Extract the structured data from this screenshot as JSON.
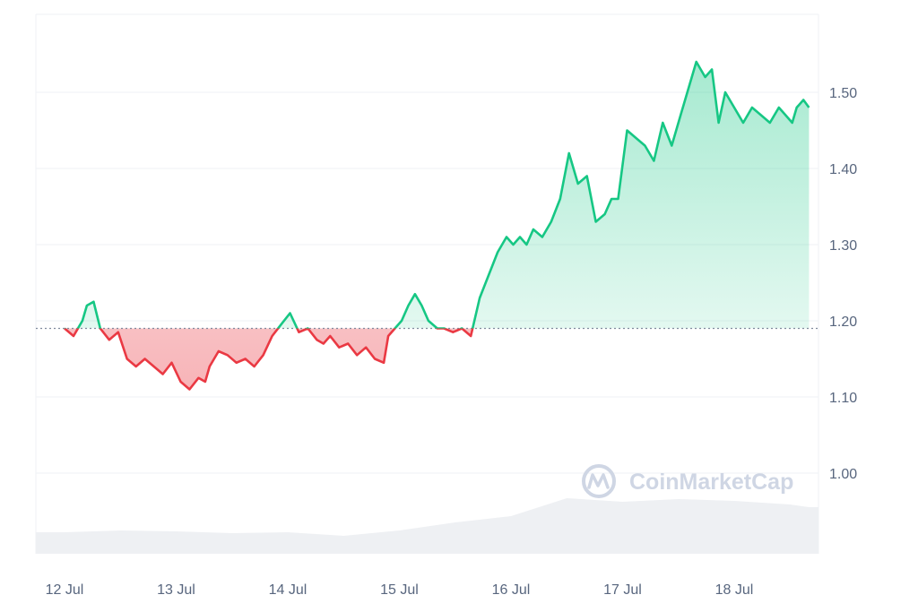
{
  "chart_data": {
    "type": "area",
    "title": "",
    "xlabel": "",
    "ylabel": "",
    "baseline": 1.19,
    "ylim": [
      0.89,
      1.6
    ],
    "xlim": [
      0,
      6.67
    ],
    "x_ticks": [
      {
        "pos": 0,
        "label": "12 Jul"
      },
      {
        "pos": 1,
        "label": "13 Jul"
      },
      {
        "pos": 2,
        "label": "14 Jul"
      },
      {
        "pos": 3,
        "label": "15 Jul"
      },
      {
        "pos": 4,
        "label": "16 Jul"
      },
      {
        "pos": 5,
        "label": "17 Jul"
      },
      {
        "pos": 6,
        "label": "18 Jul"
      }
    ],
    "y_ticks": [
      "1.00",
      "1.10",
      "1.20",
      "1.30",
      "1.40",
      "1.50"
    ],
    "grid": true,
    "series": [
      {
        "x": [
          0.0,
          0.08,
          0.16,
          0.2,
          0.26,
          0.32,
          0.4,
          0.48,
          0.56,
          0.64,
          0.72,
          0.8,
          0.88,
          0.96,
          1.04,
          1.12,
          1.2,
          1.26,
          1.3,
          1.38,
          1.46,
          1.54,
          1.62,
          1.7,
          1.78,
          1.86,
          1.94,
          2.02,
          2.1,
          2.18,
          2.26,
          2.32,
          2.38,
          2.46,
          2.54,
          2.62,
          2.7,
          2.78,
          2.86,
          2.9,
          2.96,
          3.02,
          3.08,
          3.14,
          3.2,
          3.26,
          3.34,
          3.4,
          3.48,
          3.56,
          3.64,
          3.72,
          3.8,
          3.88,
          3.96,
          4.02,
          4.08,
          4.14,
          4.2,
          4.28,
          4.36,
          4.44,
          4.52,
          4.6,
          4.68,
          4.76,
          4.84,
          4.9,
          4.96,
          5.04,
          5.12,
          5.2,
          5.28,
          5.36,
          5.44,
          5.52,
          5.58,
          5.66,
          5.74,
          5.8,
          5.86,
          5.92,
          6.0,
          6.08,
          6.16,
          6.24,
          6.32,
          6.4,
          6.46,
          6.52,
          6.56,
          6.62,
          6.67
        ],
        "y": [
          1.19,
          1.18,
          1.2,
          1.22,
          1.225,
          1.19,
          1.175,
          1.185,
          1.15,
          1.14,
          1.15,
          1.14,
          1.13,
          1.145,
          1.12,
          1.11,
          1.125,
          1.12,
          1.14,
          1.16,
          1.155,
          1.145,
          1.15,
          1.14,
          1.155,
          1.18,
          1.195,
          1.21,
          1.185,
          1.19,
          1.175,
          1.17,
          1.18,
          1.165,
          1.17,
          1.155,
          1.165,
          1.15,
          1.145,
          1.18,
          1.19,
          1.2,
          1.22,
          1.235,
          1.22,
          1.2,
          1.19,
          1.19,
          1.185,
          1.19,
          1.18,
          1.23,
          1.26,
          1.29,
          1.31,
          1.3,
          1.31,
          1.3,
          1.32,
          1.31,
          1.33,
          1.36,
          1.42,
          1.38,
          1.39,
          1.33,
          1.34,
          1.36,
          1.36,
          1.45,
          1.44,
          1.43,
          1.41,
          1.46,
          1.43,
          1.47,
          1.5,
          1.54,
          1.52,
          1.53,
          1.46,
          1.5,
          1.48,
          1.46,
          1.48,
          1.47,
          1.46,
          1.48,
          1.47,
          1.46,
          1.48,
          1.49,
          1.48
        ]
      }
    ],
    "volume": {
      "x": [
        0.0,
        0.5,
        1.0,
        1.5,
        2.0,
        2.5,
        3.0,
        3.5,
        4.0,
        4.5,
        5.0,
        5.5,
        6.0,
        6.5,
        6.67
      ],
      "values": [
        0.24,
        0.26,
        0.25,
        0.23,
        0.24,
        0.2,
        0.26,
        0.35,
        0.42,
        0.62,
        0.58,
        0.61,
        0.59,
        0.55,
        0.52
      ]
    },
    "colors": {
      "up": "#16c784",
      "down": "#ea3943",
      "grid": "#eff2f5",
      "axis_text": "#58667e",
      "baseline": "#808a9d",
      "volume": "#eef0f3",
      "watermark": "#cfd6e4"
    }
  },
  "watermark": {
    "text": "CoinMarketCap",
    "icon": "coinmarketcap-logo-icon"
  }
}
